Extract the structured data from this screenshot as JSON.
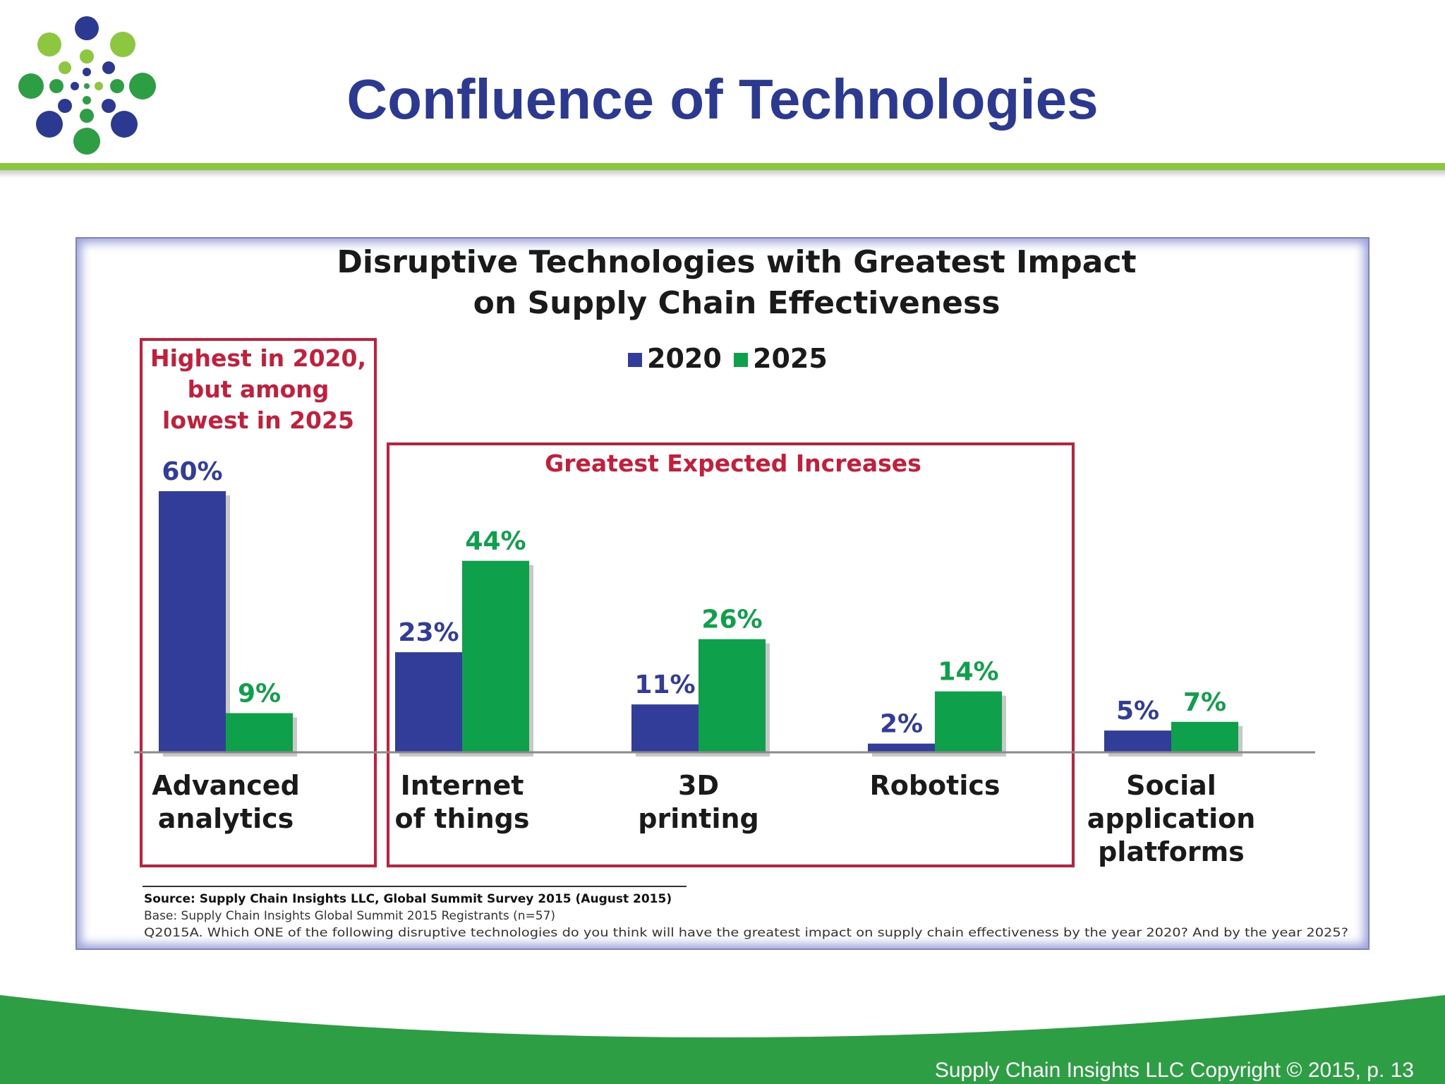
{
  "slide": {
    "title": "Confluence of Technologies",
    "copyright": "Supply Chain Insights LLC Copyright © 2015, p. 13",
    "colors": {
      "title": "#2b3990",
      "accent_green": "#8dc63f",
      "footer_green": "#2e9e44"
    }
  },
  "chart_data": {
    "type": "bar",
    "title_line1": "Disruptive Technologies with Greatest Impact",
    "title_line2": "on Supply Chain Effectiveness",
    "categories": [
      [
        "Advanced",
        "analytics"
      ],
      [
        "Internet",
        "of things"
      ],
      [
        "3D",
        "printing"
      ],
      [
        "Robotics"
      ],
      [
        "Social",
        "application",
        "platforms"
      ]
    ],
    "series": [
      {
        "name": "2020",
        "color": "#313d99",
        "values": [
          60,
          23,
          11,
          2,
          5
        ]
      },
      {
        "name": "2025",
        "color": "#0ea04a",
        "values": [
          9,
          44,
          26,
          14,
          7
        ]
      }
    ],
    "value_suffix": "%",
    "ylim": [
      0,
      60
    ],
    "grid": false,
    "legend_position": "top-center",
    "annotations": [
      {
        "lines": [
          "Highest in 2020,",
          "but among",
          "lowest in 2025"
        ],
        "color": "#c41e3a"
      },
      {
        "lines": [
          "Greatest Expected Increases"
        ],
        "color": "#c41e3a"
      }
    ],
    "source_lines": [
      "Source: Supply Chain Insights LLC, Global Summit Survey 2015 (August 2015)",
      "Base:  Supply Chain Insights Global Summit 2015 Registrants  (n=57)",
      "Q2015A. Which ONE of the following disruptive technologies do you think will have the greatest impact on supply chain effectiveness by the year 2020? And by the year 2025?"
    ]
  }
}
